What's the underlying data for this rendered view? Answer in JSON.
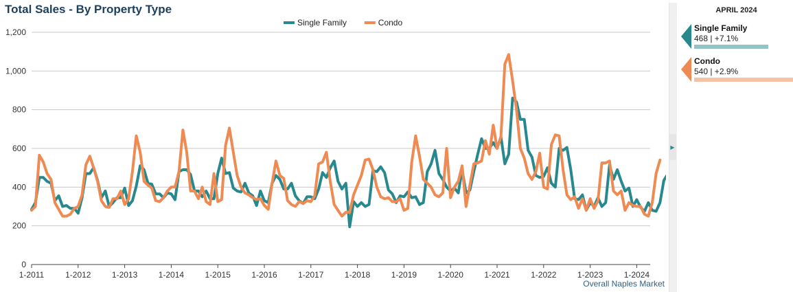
{
  "title": "Total Sales - By Property Type",
  "footer": "Overall Naples Market",
  "panel": {
    "date": "APRIL 2024",
    "items": [
      {
        "name": "Single Family",
        "stat": "468 | +7.1%",
        "color": "#27898e",
        "bar_color": "#90c4c7",
        "bar_fraction": 0.75
      },
      {
        "name": "Condo",
        "stat": "540 | +2.9%",
        "color": "#ee8a52",
        "bar_color": "#f4c3a6",
        "bar_fraction": 1.0
      }
    ]
  },
  "colors": {
    "single_family": "#27898e",
    "condo": "#ee8a52",
    "axis_text": "#333333",
    "grid": "#c8c8c8"
  },
  "icons": {
    "collapse": "chevron-right-icon"
  },
  "chart_data": {
    "type": "line",
    "title": "Total Sales - By Property Type",
    "xlabel": "",
    "ylabel": "",
    "ylim": [
      0,
      1200
    ],
    "yticks": [
      0,
      200,
      400,
      600,
      800,
      1000,
      1200
    ],
    "ytick_labels": [
      "0",
      "200",
      "400",
      "600",
      "800",
      "1,000",
      "1,200"
    ],
    "xtick_labels": [
      "1-2011",
      "1-2012",
      "1-2013",
      "1-2014",
      "1-2015",
      "1-2016",
      "1-2017",
      "1-2018",
      "1-2019",
      "1-2020",
      "1-2021",
      "1-2022",
      "1-2023",
      "1-2024"
    ],
    "x_start": "2011-01",
    "x_end": "2024-04",
    "grid": true,
    "legend_position": "top-center",
    "series": [
      {
        "name": "Single Family",
        "color": "#27898e",
        "values": [
          285,
          320,
          450,
          450,
          430,
          420,
          330,
          355,
          300,
          305,
          290,
          290,
          265,
          345,
          470,
          470,
          500,
          435,
          345,
          380,
          300,
          320,
          345,
          345,
          395,
          305,
          330,
          405,
          510,
          490,
          420,
          415,
          365,
          365,
          345,
          370,
          365,
          335,
          480,
          490,
          490,
          465,
          380,
          380,
          350,
          380,
          340,
          340,
          470,
          550,
          470,
          475,
          395,
          380,
          375,
          420,
          370,
          355,
          305,
          380,
          330,
          320,
          420,
          460,
          440,
          390,
          390,
          420,
          355,
          330,
          315,
          350,
          350,
          340,
          390,
          475,
          450,
          500,
          535,
          430,
          390,
          420,
          195,
          325,
          300,
          320,
          300,
          310,
          485,
          480,
          505,
          475,
          385,
          365,
          320,
          355,
          350,
          375,
          345,
          350,
          310,
          320,
          480,
          520,
          590,
          470,
          440,
          400,
          380,
          395,
          370,
          490,
          370,
          385,
          480,
          570,
          650,
          600,
          600,
          630,
          600,
          660,
          520,
          570,
          860,
          840,
          750,
          750,
          590,
          555,
          460,
          450,
          455,
          500,
          420,
          400,
          600,
          590,
          605,
          490,
          340,
          335,
          360,
          280,
          320,
          300,
          345,
          300,
          320,
          515,
          440,
          490,
          430,
          380,
          395,
          300,
          335,
          295,
          275,
          320,
          280,
          275,
          320,
          435,
          468
        ]
      },
      {
        "name": "Condo",
        "color": "#ee8a52",
        "values": [
          280,
          300,
          565,
          530,
          470,
          440,
          320,
          285,
          250,
          250,
          260,
          290,
          300,
          360,
          515,
          560,
          500,
          430,
          330,
          300,
          295,
          340,
          340,
          380,
          310,
          340,
          480,
          665,
          580,
          430,
          410,
          395,
          330,
          325,
          345,
          380,
          400,
          400,
          480,
          695,
          580,
          380,
          380,
          340,
          400,
          325,
          310,
          470,
          325,
          335,
          615,
          705,
          580,
          460,
          400,
          370,
          360,
          345,
          335,
          340,
          305,
          285,
          420,
          535,
          460,
          445,
          330,
          310,
          300,
          325,
          315,
          330,
          325,
          355,
          520,
          530,
          580,
          430,
          310,
          280,
          250,
          270,
          270,
          360,
          410,
          460,
          540,
          545,
          490,
          400,
          350,
          340,
          345,
          325,
          325,
          340,
          280,
          290,
          530,
          665,
          560,
          440,
          420,
          400,
          360,
          350,
          370,
          600,
          345,
          400,
          430,
          510,
          300,
          410,
          520,
          525,
          535,
          640,
          570,
          720,
          600,
          660,
          1035,
          1085,
          950,
          800,
          600,
          550,
          470,
          440,
          480,
          575,
          400,
          390,
          620,
          670,
          665,
          490,
          360,
          335,
          350,
          290,
          340,
          280,
          340,
          290,
          330,
          525,
          525,
          535,
          380,
          360,
          380,
          280,
          320,
          305,
          300,
          300,
          260,
          250,
          320,
          470,
          540
        ]
      }
    ]
  }
}
